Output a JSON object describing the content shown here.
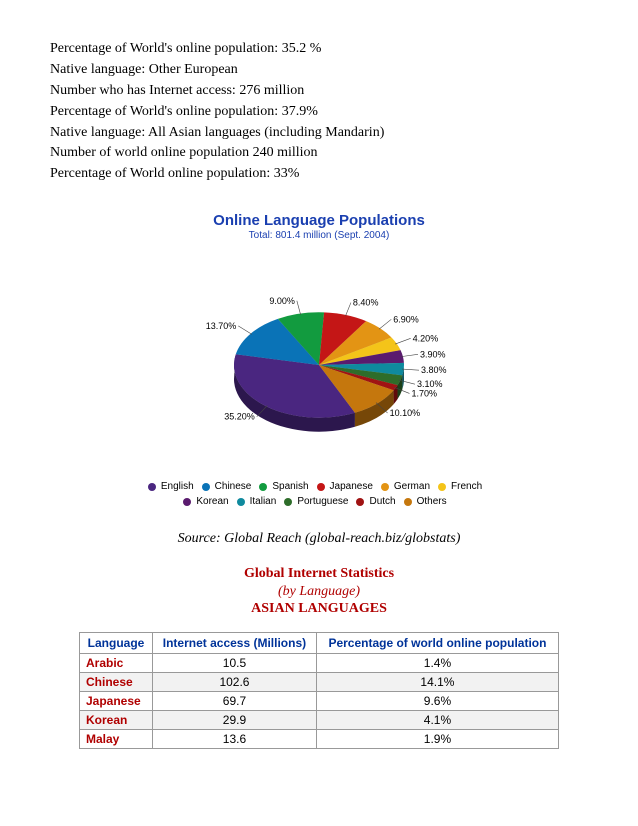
{
  "intro": {
    "l1": "Percentage of World's online population:  35.2 %",
    "l2": "Native language:  Other European",
    "l3": "Number who has Internet access:  276 million",
    "l4": "Percentage of World's online population:  37.9%",
    "l5": "Native language:  All Asian languages (including Mandarin)",
    "l6": "Number of world online population 240 million",
    "l7": "Percentage of World online population:  33%"
  },
  "chart": {
    "type": "pie",
    "title": "Online Language Populations",
    "subtitle": "Total: 801.4 million (Sept. 2004)",
    "slices": [
      {
        "name": "English",
        "value": 35.2,
        "color": "#4a2680",
        "label": "35.20%"
      },
      {
        "name": "Chinese",
        "value": 13.7,
        "color": "#0a73b7",
        "label": "13.70%"
      },
      {
        "name": "Spanish",
        "value": 9.0,
        "color": "#129b3f",
        "label": "9.00%"
      },
      {
        "name": "Japanese",
        "value": 8.4,
        "color": "#c41616",
        "label": "8.40%"
      },
      {
        "name": "German",
        "value": 6.9,
        "color": "#e39414",
        "label": "6.90%"
      },
      {
        "name": "French",
        "value": 4.2,
        "color": "#f4c419",
        "label": "4.20%"
      },
      {
        "name": "Korean",
        "value": 3.9,
        "color": "#5a1b6e",
        "label": "3.90%"
      },
      {
        "name": "Italian",
        "value": 3.8,
        "color": "#0f8a9e",
        "label": "3.80%"
      },
      {
        "name": "Portuguese",
        "value": 3.1,
        "color": "#2e6d2a",
        "label": "3.10%"
      },
      {
        "name": "Dutch",
        "value": 1.7,
        "color": "#a01313",
        "label": "1.70%"
      },
      {
        "name": "Others",
        "value": 10.1,
        "color": "#c5770d",
        "label": "10.10%"
      }
    ],
    "radius": 85,
    "background_color": "#ffffff"
  },
  "source": "Source: Global Reach (global-reach.biz/globstats)",
  "section": {
    "t1": "Global Internet Statistics",
    "t2": "(by Language)",
    "t3": "ASIAN LANGUAGES"
  },
  "table": {
    "columns": [
      "Language",
      "Internet access (Millions)",
      "Percentage of world online population"
    ],
    "rows": [
      {
        "lang": "Arabic",
        "access": "10.5",
        "pct": "1.4%"
      },
      {
        "lang": "Chinese",
        "access": "102.6",
        "pct": "14.1%"
      },
      {
        "lang": "Japanese",
        "access": "69.7",
        "pct": "9.6%"
      },
      {
        "lang": "Korean",
        "access": "29.9",
        "pct": "4.1%"
      },
      {
        "lang": "Malay",
        "access": "13.6",
        "pct": "1.9%"
      }
    ]
  }
}
